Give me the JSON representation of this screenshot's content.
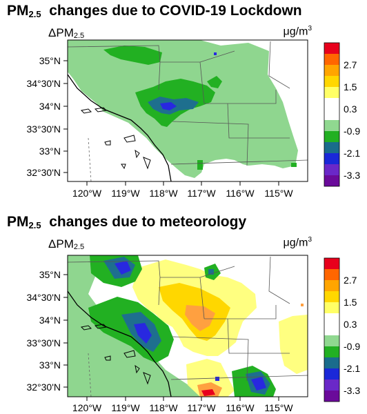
{
  "panels": [
    {
      "title_main": "PM",
      "title_sub": "2.5",
      "title_rest": "changes due to COVID-19 Lockdown",
      "var_main": "ΔPM",
      "var_sub": "2.5",
      "units_main": "μg/m",
      "units_sup": "3"
    },
    {
      "title_main": "PM",
      "title_sub": "2.5",
      "title_rest": "changes due to meteorology",
      "var_main": "ΔPM",
      "var_sub": "2.5",
      "units_main": "μg/m",
      "units_sup": "3"
    }
  ],
  "lat_ticks": [
    "35°N",
    "34°30'N",
    "34°N",
    "33°30'N",
    "33°N",
    "32°30'N"
  ],
  "lon_ticks": [
    "120°W",
    "119°W",
    "118°W",
    "117°W",
    "116°W",
    "115°W"
  ],
  "colorbar": {
    "colors": [
      "#e8001c",
      "#ff6600",
      "#ffa500",
      "#ffd700",
      "#ffff66",
      "#ffffff",
      "#ffffff",
      "#90d890",
      "#22b022",
      "#1a6c8c",
      "#1a28d8",
      "#6a28c8",
      "#6a0a9a"
    ],
    "labels": [
      "2.7",
      "1.5",
      "0.3",
      "-0.9",
      "-2.1",
      "-3.3"
    ]
  },
  "colors": {
    "light_green": "#8fd68f",
    "green": "#22b022",
    "teal": "#1e6f8e",
    "blue": "#2828e0",
    "yellow": "#ffff80",
    "gold": "#ffd700",
    "orange": "#ffa040",
    "red": "#e8001c"
  }
}
